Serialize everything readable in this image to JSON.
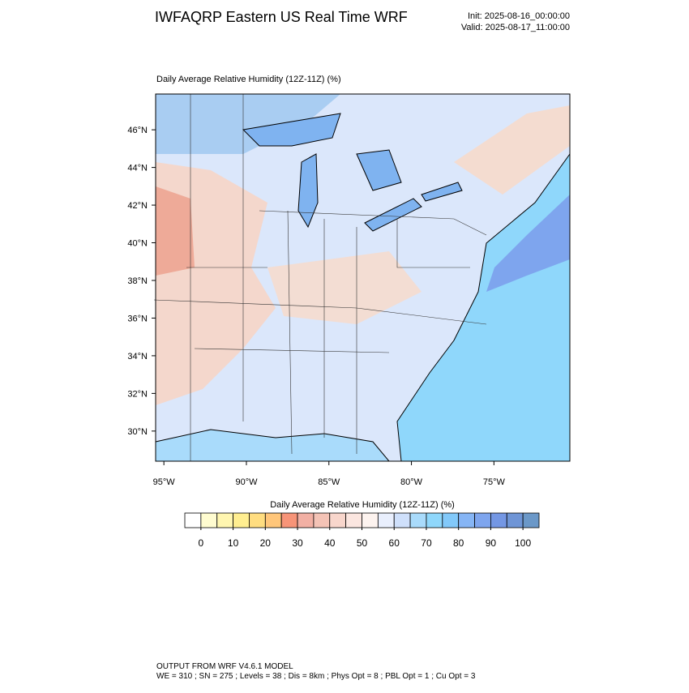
{
  "header": {
    "title": "IWFAQRP Eastern US Real Time WRF",
    "init": "Init: 2025-08-16_00:00:00",
    "valid": "Valid: 2025-08-17_11:00:00"
  },
  "map": {
    "title": "Daily Average Relative Humidity (12Z-11Z)   (%)",
    "lon_range": [
      -95.5,
      -70.4
    ],
    "lat_range": [
      28.4,
      47.9
    ],
    "lon_ticks": [
      {
        "value": -95,
        "label": "95°W"
      },
      {
        "value": -90,
        "label": "90°W"
      },
      {
        "value": -85,
        "label": "85°W"
      },
      {
        "value": -80,
        "label": "80°W"
      },
      {
        "value": -75,
        "label": "75°W"
      }
    ],
    "lat_ticks": [
      {
        "value": 46,
        "label": "46°N"
      },
      {
        "value": 44,
        "label": "44°N"
      },
      {
        "value": 42,
        "label": "42°N"
      },
      {
        "value": 40,
        "label": "40°N"
      },
      {
        "value": 38,
        "label": "38°N"
      },
      {
        "value": 36,
        "label": "36°N"
      },
      {
        "value": 34,
        "label": "34°N"
      },
      {
        "value": 32,
        "label": "32°N"
      },
      {
        "value": 30,
        "label": "30°N"
      }
    ]
  },
  "colorbar": {
    "title": "Daily Average Relative Humidity (12Z-11Z)  (%)",
    "range": [
      -5,
      105
    ],
    "ticks": [
      0,
      10,
      20,
      30,
      40,
      50,
      60,
      70,
      80,
      90,
      100
    ],
    "colors": [
      "#ffffff",
      "#fffcd0",
      "#fff6b0",
      "#ffee90",
      "#ffdd80",
      "#ffc67a",
      "#f79478",
      "#f2b0a4",
      "#f4c3b6",
      "#f8d6cc",
      "#fbe6e0",
      "#fdf3ef",
      "#e9effd",
      "#cfe0fb",
      "#a9dbfb",
      "#8fd7fb",
      "#82c9fa",
      "#86b5f5",
      "#7ea5ee",
      "#7497e4",
      "#6f95d6",
      "#6b98c8"
    ]
  },
  "footer": {
    "line1": "OUTPUT FROM WRF V4.6.1 MODEL",
    "line2": "WE = 310 ; SN = 275 ; Levels = 38 ; Dis = 8km ; Phys Opt = 8 ; PBL Opt = 1 ; Cu Opt = 3"
  }
}
